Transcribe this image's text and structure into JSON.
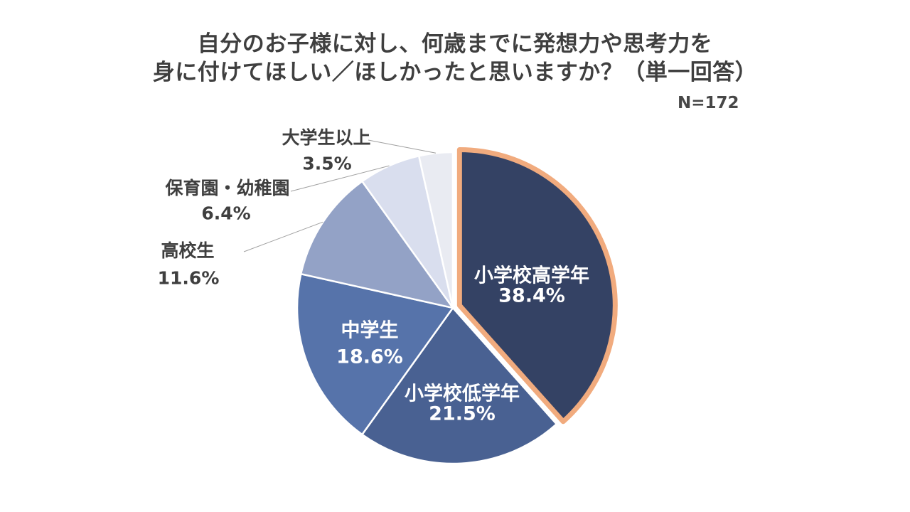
{
  "title": {
    "line1": "自分のお子様に対し、何歳までに発想力や思考力を",
    "line2": "身に付けてほしい／ほしかったと思いますか？（単一回答）"
  },
  "sample_size_label": "N=172",
  "chart_data": {
    "type": "pie",
    "title": "自分のお子様に対し、何歳までに発想力や思考力を身に付けてほしい／ほしかったと思いますか？（単一回答）",
    "sample_size": 172,
    "unit": "%",
    "start_angle_deg": 0,
    "direction": "clockwise",
    "slice_divider_color": "#FFFFFF",
    "leader_line_color": "#A0A0A0",
    "highlight_outline_color": "#F1AB7E",
    "segments": [
      {
        "label": "小学校高学年",
        "value": 38.4,
        "pct_label": "38.4%",
        "color": "#344264",
        "text_color": "#FFFFFF",
        "label_placement": "inside",
        "exploded": true
      },
      {
        "label": "小学校低学年",
        "value": 21.5,
        "pct_label": "21.5%",
        "color": "#496192",
        "text_color": "#FFFFFF",
        "label_placement": "inside",
        "exploded": false
      },
      {
        "label": "中学生",
        "value": 18.6,
        "pct_label": "18.6%",
        "color": "#5673AA",
        "text_color": "#FFFFFF",
        "label_placement": "inside",
        "exploded": false
      },
      {
        "label": "高校生",
        "value": 11.6,
        "pct_label": "11.6%",
        "color": "#93A2C6",
        "text_color": "#3F3F3F",
        "label_placement": "outside",
        "exploded": false
      },
      {
        "label": "保育園・幼稚園",
        "value": 6.4,
        "pct_label": "6.4%",
        "color": "#D9DEEE",
        "text_color": "#3F3F3F",
        "label_placement": "outside",
        "exploded": false
      },
      {
        "label": "大学生以上",
        "value": 3.5,
        "pct_label": "3.5%",
        "color": "#E9EBF2",
        "text_color": "#3F3F3F",
        "label_placement": "outside",
        "exploded": false
      }
    ]
  }
}
